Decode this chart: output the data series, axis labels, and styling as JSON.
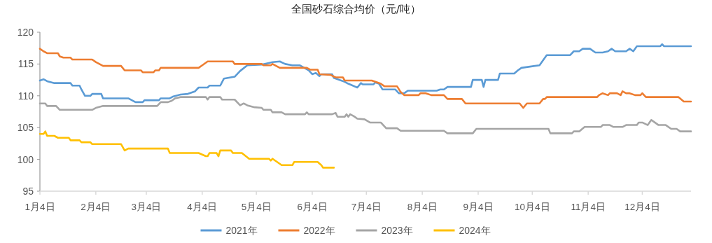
{
  "chart_data": {
    "type": "line",
    "title": "全国砂石综合均价（元/吨）",
    "xlim": [
      "--01-04",
      "--12-31"
    ],
    "xticks": [
      {
        "value": "--01-04",
        "label": "1月4日"
      },
      {
        "value": "--02-04",
        "label": "2月4日"
      },
      {
        "value": "--03-04",
        "label": "3月4日"
      },
      {
        "value": "--04-04",
        "label": "4月4日"
      },
      {
        "value": "--05-04",
        "label": "5月4日"
      },
      {
        "value": "--06-04",
        "label": "6月4日"
      },
      {
        "value": "--07-04",
        "label": "7月4日"
      },
      {
        "value": "--08-04",
        "label": "8月4日"
      },
      {
        "value": "--09-04",
        "label": "9月4日"
      },
      {
        "value": "--10-04",
        "label": "10月4日"
      },
      {
        "value": "--11-04",
        "label": "11月4日"
      },
      {
        "value": "--12-04",
        "label": "12月4日"
      }
    ],
    "ylim": [
      95,
      120
    ],
    "yticks": [
      95,
      100,
      105,
      110,
      115,
      120
    ],
    "grid": false,
    "legend": "bottom",
    "marker": "none",
    "line_style": "solid",
    "series": [
      {
        "name": "2021年",
        "color": "#5b9bd5",
        "x": [
          "--01-04",
          "--01-06",
          "--01-08",
          "--01-12",
          "--01-21",
          "--01-22",
          "--01-26",
          "--01-27",
          "--01-29",
          "--02-01",
          "--02-02",
          "--02-07",
          "--02-08",
          "--02-22",
          "--02-26",
          "--03-02",
          "--03-03",
          "--03-11",
          "--03-12",
          "--03-17",
          "--03-19",
          "--03-23",
          "--03-27",
          "--03-31",
          "--04-02",
          "--04-07",
          "--04-08",
          "--04-14",
          "--04-16",
          "--04-22",
          "--04-25",
          "--04-29",
          "--05-07",
          "--05-13",
          "--05-17",
          "--05-20",
          "--05-24",
          "--05-28",
          "--06-02",
          "--06-04",
          "--06-06",
          "--06-08",
          "--06-09",
          "--06-15",
          "--06-16",
          "--06-22",
          "--06-24",
          "--06-29",
          "--07-01",
          "--07-02",
          "--07-08",
          "--07-09",
          "--07-11",
          "--07-13",
          "--07-20",
          "--07-22",
          "--07-25",
          "--07-27",
          "--08-12",
          "--08-14",
          "--08-16",
          "--08-18",
          "--08-31",
          "--09-01",
          "--09-06",
          "--09-07",
          "--09-08",
          "--09-15",
          "--09-16",
          "--09-24",
          "--09-26",
          "--09-28",
          "--10-08",
          "--10-12",
          "--10-25",
          "--10-27",
          "--10-30",
          "--11-01",
          "--11-05",
          "--11-08",
          "--11-12",
          "--11-15",
          "--11-17",
          "--11-19",
          "--11-25",
          "--11-27",
          "--11-29",
          "--12-01",
          "--12-14",
          "--12-15",
          "--12-16",
          "--12-31"
        ],
        "values": [
          112.4,
          112.6,
          112.3,
          112.0,
          112.0,
          111.6,
          111.6,
          111.0,
          110.0,
          110.0,
          110.3,
          110.3,
          109.6,
          109.6,
          109.0,
          109.0,
          109.3,
          109.3,
          109.6,
          109.6,
          109.9,
          110.2,
          110.3,
          110.7,
          111.3,
          111.3,
          111.6,
          111.6,
          112.7,
          113.0,
          113.9,
          114.8,
          114.9,
          115.3,
          115.4,
          115.0,
          114.8,
          114.8,
          114.0,
          113.4,
          113.6,
          113.1,
          113.4,
          113.4,
          112.8,
          112.2,
          111.9,
          111.3,
          112.0,
          111.8,
          111.8,
          112.1,
          111.9,
          111.0,
          111.0,
          110.4,
          110.4,
          110.8,
          110.8,
          111.0,
          111.0,
          111.4,
          111.4,
          112.5,
          112.5,
          111.4,
          112.5,
          112.5,
          113.5,
          113.5,
          114.0,
          114.4,
          114.8,
          116.4,
          116.4,
          117.0,
          117.0,
          117.4,
          117.4,
          116.8,
          116.8,
          117.0,
          117.4,
          117.0,
          117.0,
          117.4,
          117.0,
          117.8,
          117.8,
          118.1,
          117.8,
          117.8
        ]
      },
      {
        "name": "2022年",
        "color": "#ed7d31",
        "x": [
          "--01-04",
          "--01-06",
          "--01-08",
          "--01-14",
          "--01-15",
          "--01-17",
          "--01-21",
          "--01-22",
          "--02-02",
          "--02-04",
          "--02-08",
          "--02-18",
          "--02-20",
          "--03-01",
          "--03-02",
          "--03-08",
          "--03-09",
          "--03-11",
          "--03-12",
          "--04-02",
          "--04-04",
          "--04-07",
          "--04-21",
          "--04-22",
          "--05-07",
          "--05-08",
          "--05-12",
          "--05-13",
          "--05-17",
          "--06-01",
          "--06-03",
          "--06-07",
          "--06-08",
          "--06-14",
          "--06-17",
          "--06-21",
          "--06-22",
          "--07-07",
          "--07-09",
          "--07-12",
          "--07-14",
          "--07-21",
          "--07-23",
          "--07-25",
          "--08-02",
          "--08-03",
          "--08-06",
          "--08-09",
          "--08-16",
          "--08-18",
          "--08-26",
          "--08-28",
          "--09-27",
          "--09-29",
          "--10-01",
          "--10-08",
          "--10-10",
          "--10-11",
          "--10-12",
          "--11-09",
          "--11-10",
          "--11-12",
          "--11-15",
          "--11-16",
          "--11-20",
          "--11-22",
          "--11-23",
          "--11-25",
          "--11-27",
          "--11-30",
          "--12-03",
          "--12-04",
          "--12-06",
          "--12-24",
          "--12-27",
          "--12-31"
        ],
        "values": [
          117.4,
          117.0,
          116.7,
          116.7,
          116.2,
          116.0,
          116.0,
          115.7,
          115.7,
          115.3,
          114.7,
          114.7,
          114.0,
          114.0,
          113.7,
          113.7,
          114.0,
          114.0,
          114.4,
          114.4,
          114.8,
          115.4,
          115.4,
          115.0,
          115.0,
          114.8,
          114.8,
          115.0,
          114.4,
          114.4,
          114.1,
          114.1,
          113.4,
          113.3,
          112.9,
          112.9,
          112.4,
          112.4,
          112.2,
          111.9,
          111.5,
          111.5,
          110.6,
          110.1,
          110.1,
          110.4,
          110.4,
          110.1,
          110.1,
          109.5,
          109.5,
          108.8,
          108.8,
          108.1,
          108.8,
          108.8,
          109.5,
          109.5,
          109.8,
          109.8,
          110.1,
          110.4,
          110.1,
          110.4,
          110.4,
          110.1,
          110.7,
          110.4,
          110.4,
          110.1,
          110.1,
          110.4,
          109.8,
          109.8,
          109.1,
          109.1
        ]
      },
      {
        "name": "2023年",
        "color": "#a5a5a5",
        "x": [
          "--01-04",
          "--01-07",
          "--01-08",
          "--01-13",
          "--01-15",
          "--02-02",
          "--02-04",
          "--02-08",
          "--03-10",
          "--03-12",
          "--03-16",
          "--03-18",
          "--03-20",
          "--03-23",
          "--04-06",
          "--04-07",
          "--04-08",
          "--04-14",
          "--04-15",
          "--04-22",
          "--04-24",
          "--04-25",
          "--04-27",
          "--04-29",
          "--05-03",
          "--05-07",
          "--05-08",
          "--05-12",
          "--05-13",
          "--05-18",
          "--05-20",
          "--05-31",
          "--06-01",
          "--06-02",
          "--06-15",
          "--06-17",
          "--06-18",
          "--06-22",
          "--06-23",
          "--06-24",
          "--06-25",
          "--06-27",
          "--06-29",
          "--07-03",
          "--07-06",
          "--07-12",
          "--07-15",
          "--07-21",
          "--07-23",
          "--08-16",
          "--08-18",
          "--09-01",
          "--09-03",
          "--10-13",
          "--10-14",
          "--10-26",
          "--10-27",
          "--10-30",
          "--11-02",
          "--11-11",
          "--11-12",
          "--11-16",
          "--11-18",
          "--11-23",
          "--11-25",
          "--12-01",
          "--12-02",
          "--12-04",
          "--12-07",
          "--12-09",
          "--12-10",
          "--12-13",
          "--12-17",
          "--12-20",
          "--12-23",
          "--12-25",
          "--12-31"
        ],
        "values": [
          108.8,
          108.8,
          108.4,
          108.4,
          107.8,
          107.8,
          108.1,
          108.4,
          108.4,
          109.0,
          109.0,
          109.2,
          109.6,
          109.8,
          109.8,
          109.4,
          109.8,
          109.8,
          109.4,
          109.4,
          108.8,
          108.5,
          108.8,
          108.5,
          108.2,
          108.1,
          107.8,
          107.8,
          107.4,
          107.4,
          107.1,
          107.1,
          107.4,
          107.1,
          107.1,
          107.3,
          106.7,
          106.7,
          107.1,
          106.7,
          107.1,
          106.8,
          106.4,
          106.3,
          105.8,
          105.8,
          104.9,
          104.9,
          104.5,
          104.5,
          104.1,
          104.1,
          104.8,
          104.8,
          104.1,
          104.1,
          104.4,
          104.4,
          105.1,
          105.1,
          105.4,
          105.4,
          105.1,
          105.1,
          105.4,
          105.4,
          105.8,
          105.8,
          105.4,
          106.2,
          106.0,
          105.4,
          105.4,
          104.8,
          104.8,
          104.4,
          104.4
        ]
      },
      {
        "name": "2024年",
        "color": "#ffc000",
        "x": [
          "--01-04",
          "--01-06",
          "--01-07",
          "--01-08",
          "--01-12",
          "--01-14",
          "--01-20",
          "--01-21",
          "--01-26",
          "--01-27",
          "--02-01",
          "--02-02",
          "--02-18",
          "--02-20",
          "--02-22",
          "--03-16",
          "--03-17",
          "--04-02",
          "--04-06",
          "--04-07",
          "--04-08",
          "--04-12",
          "--04-13",
          "--04-14",
          "--04-20",
          "--04-21",
          "--04-26",
          "--04-30",
          "--05-11",
          "--05-12",
          "--05-13",
          "--05-18",
          "--05-24",
          "--05-25",
          "--06-07",
          "--06-09",
          "--06-10",
          "--06-16"
        ],
        "values": [
          104.0,
          104.0,
          104.4,
          103.7,
          103.7,
          103.4,
          103.4,
          103.0,
          103.0,
          102.7,
          102.7,
          102.4,
          102.4,
          101.4,
          101.7,
          101.7,
          101.0,
          101.0,
          100.5,
          100.5,
          101.0,
          101.0,
          100.5,
          101.4,
          101.4,
          101.0,
          101.0,
          100.1,
          100.1,
          99.8,
          100.1,
          99.1,
          99.1,
          99.6,
          99.6,
          99.1,
          98.7,
          98.7
        ]
      }
    ]
  }
}
